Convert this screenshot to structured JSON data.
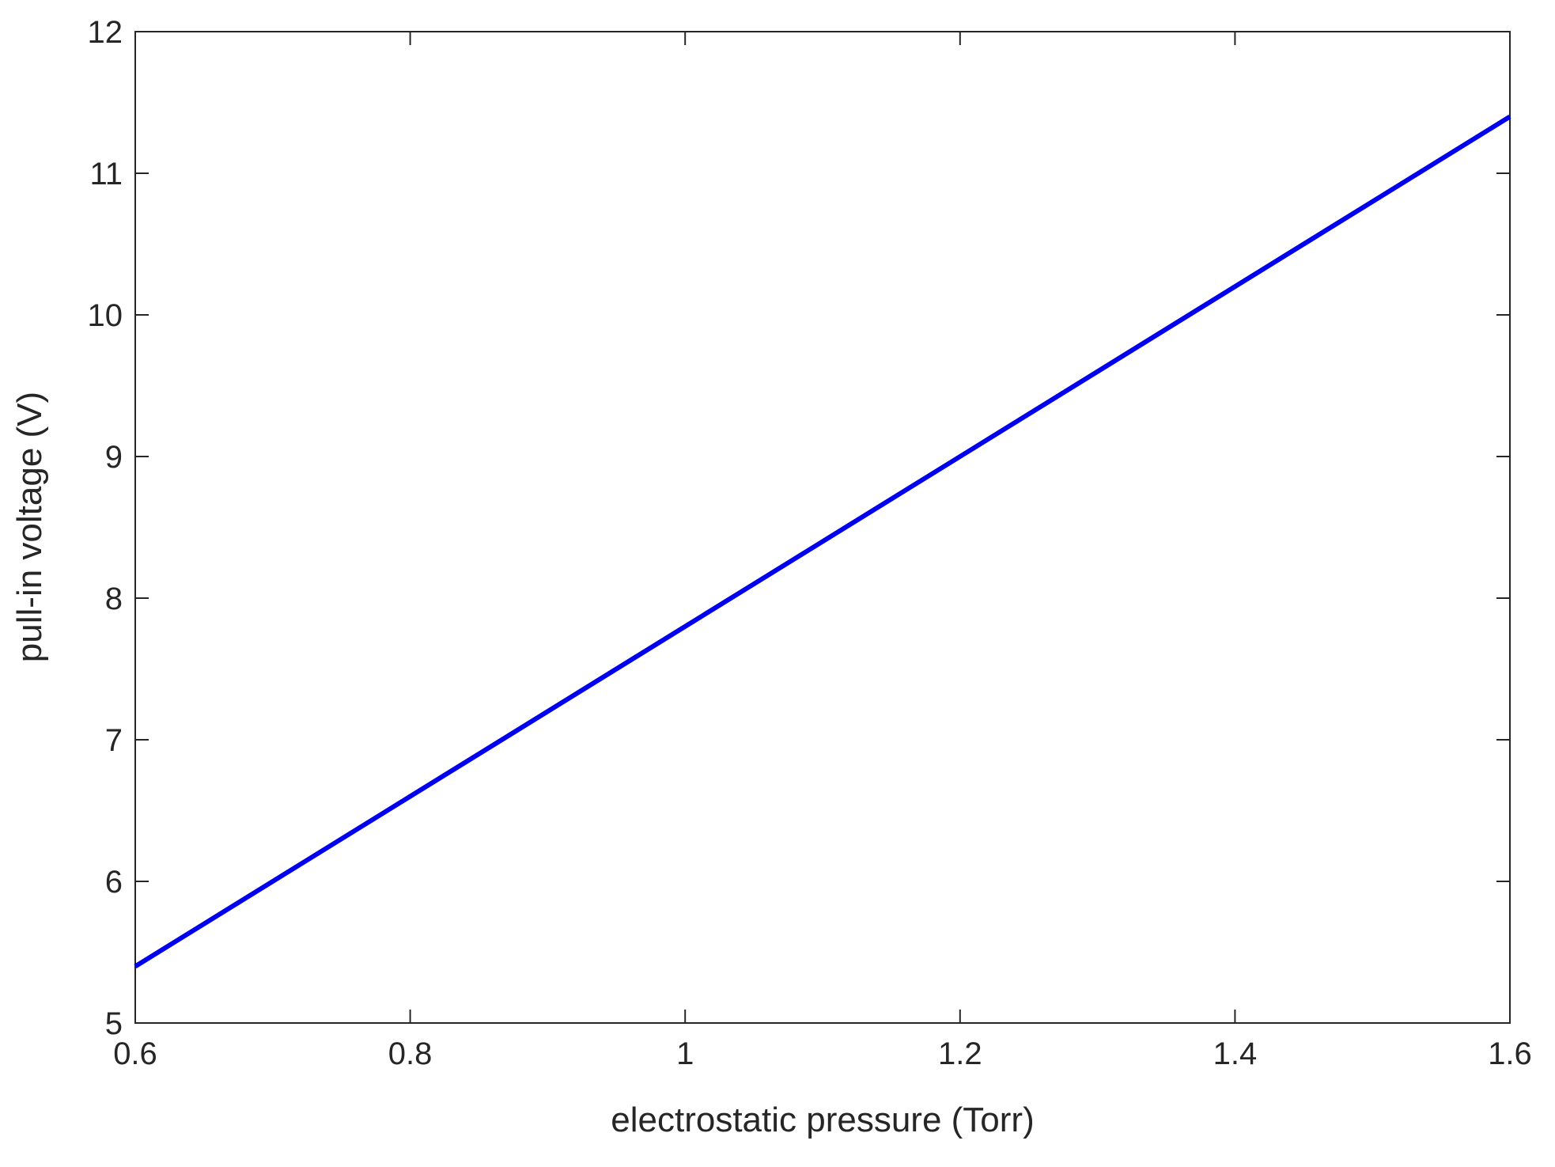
{
  "chart_data": {
    "type": "line",
    "x_label": "electrostatic pressure (Torr)",
    "y_label": "pull-in voltage (V)",
    "x": [
      0.6,
      0.8,
      1.0,
      1.2,
      1.4,
      1.6
    ],
    "series": [
      {
        "color": "#0000ee",
        "values": [
          5.4,
          6.6,
          7.8,
          9.0,
          10.2,
          11.4
        ]
      }
    ],
    "xlim": [
      0.6,
      1.6
    ],
    "xticks": [
      0.6,
      0.8,
      1,
      1.2,
      1.4,
      1.6
    ],
    "ylim": [
      5,
      12
    ],
    "yticks": [
      5,
      6,
      7,
      8,
      9,
      10,
      11,
      12
    ],
    "grid": false
  }
}
